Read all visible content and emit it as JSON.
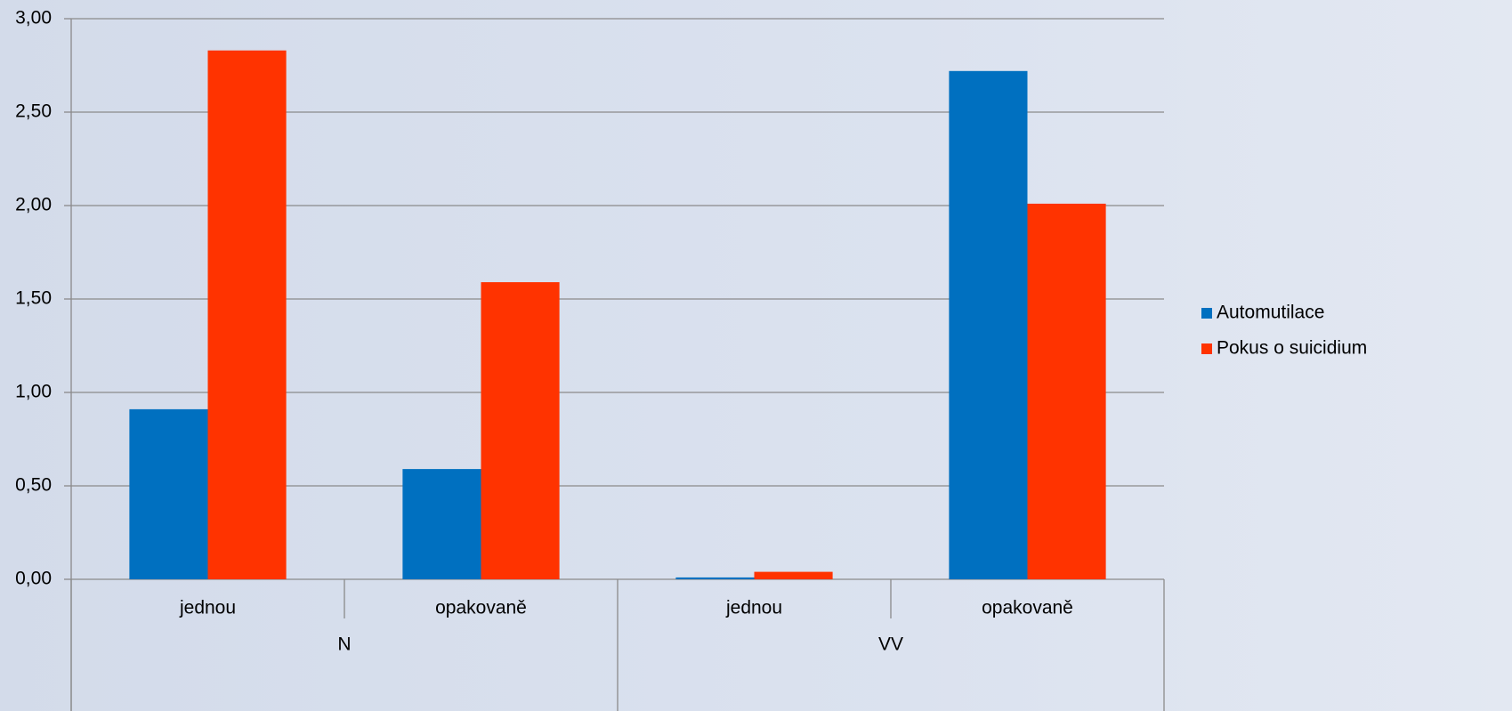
{
  "chart_data": {
    "type": "bar",
    "categories": [
      "jednou",
      "opakovaně",
      "jednou",
      "opakovaně"
    ],
    "category_groups": [
      "N",
      "VV"
    ],
    "series": [
      {
        "name": "Automutilace",
        "color": "#0070c0",
        "values": [
          0.91,
          0.59,
          0.01,
          2.72
        ]
      },
      {
        "name": "Pokus o suicidium",
        "color": "#ff3300",
        "values": [
          2.83,
          1.59,
          0.04,
          2.01
        ]
      }
    ],
    "ylim": [
      0,
      3
    ],
    "yticks": [
      {
        "value": 0,
        "label": "0,00"
      },
      {
        "value": 0.5,
        "label": "0,50"
      },
      {
        "value": 1,
        "label": "1,00"
      },
      {
        "value": 1.5,
        "label": "1,50"
      },
      {
        "value": 2,
        "label": "2,00"
      },
      {
        "value": 2.5,
        "label": "2,50"
      },
      {
        "value": 3,
        "label": "3,00"
      }
    ],
    "grid": true,
    "legend": "right"
  }
}
